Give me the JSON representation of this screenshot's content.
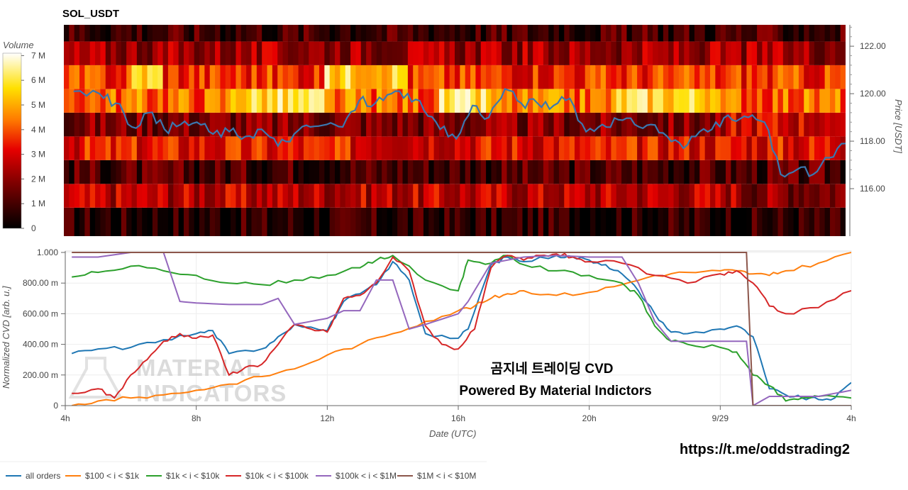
{
  "title": "SOL_USDT",
  "colorbar": {
    "label": "Volume",
    "ticks": [
      "0",
      "1 M",
      "2 M",
      "3 M",
      "4 M",
      "5 M",
      "6 M",
      "7 M"
    ],
    "range": [
      0,
      7000000
    ]
  },
  "heatmap": {
    "price_ticks": [
      "116.00",
      "118.00",
      "120.00",
      "122.00"
    ],
    "price_tick_values": [
      116,
      118,
      120,
      122
    ],
    "price_range": [
      114.0,
      122.9
    ],
    "price_axis_label": "Price [USDT]"
  },
  "cvd": {
    "y_axis_label": "Normalized CVD [arb. u.]",
    "y_ticks": [
      "0",
      "200.00 m",
      "400.00 m",
      "600.00 m",
      "800.00 m",
      "1.000"
    ],
    "y_tick_values": [
      0,
      0.2,
      0.4,
      0.6,
      0.8,
      1.0
    ],
    "x_ticks": [
      "4h",
      "8h",
      "12h",
      "16h",
      "20h",
      "9/29",
      "4h"
    ],
    "x_tick_values": [
      4,
      8,
      12,
      16,
      20,
      24,
      28
    ],
    "x_axis_label": "Date (UTC)"
  },
  "overlay_text": {
    "line1": "곰지네 트레이딩 CVD",
    "line2": "Powered By Material Indictors"
  },
  "watermark": {
    "line1": "MATERIAL",
    "line2": "INDICATORS"
  },
  "url": "https://t.me/oddstrading2",
  "legend": [
    {
      "label": "all orders",
      "color": "#1f77b4"
    },
    {
      "label": "$100 < i < $1k",
      "color": "#ff7f0e"
    },
    {
      "label": "$1k < i < $10k",
      "color": "#2ca02c"
    },
    {
      "label": "$10k < i < $100k",
      "color": "#d62728"
    },
    {
      "label": "$100k < i < $1M",
      "color": "#9467bd"
    },
    {
      "label": "$1M < i < $10M",
      "color": "#8c564b"
    }
  ],
  "chart_data": [
    {
      "type": "heatmap",
      "x_range_hours": [
        3.9,
        28.0
      ],
      "y_bands_price": [
        114.2,
        115.2,
        116.2,
        117.2,
        118.2,
        119.2,
        120.2,
        121.2,
        122.2
      ],
      "band_mean_volume_millions": [
        0.6,
        2.6,
        1.1,
        3.2,
        1.8,
        4.2,
        3.6,
        2.2,
        1.0
      ],
      "price_line": {
        "x": [
          4.2,
          5.0,
          5.5,
          6.0,
          6.5,
          7.0,
          7.5,
          8.0,
          8.5,
          9.0,
          9.5,
          10.0,
          10.5,
          11.0,
          11.5,
          12.0,
          12.5,
          13.0,
          13.5,
          14.0,
          14.5,
          15.0,
          15.5,
          16.0,
          16.5,
          17.0,
          17.5,
          18.0,
          18.5,
          19.0,
          19.5,
          20.0,
          20.5,
          21.0,
          21.5,
          22.0,
          22.5,
          23.0,
          23.5,
          24.0,
          24.5,
          25.0,
          25.5,
          26.0,
          26.5,
          27.0,
          27.5,
          28.0
        ],
        "y": [
          120.1,
          120.0,
          119.6,
          118.6,
          119.2,
          118.5,
          118.7,
          118.8,
          118.3,
          118.4,
          118.2,
          118.5,
          117.8,
          118.3,
          118.6,
          118.7,
          118.6,
          119.7,
          119.6,
          120.0,
          120.0,
          119.3,
          118.5,
          118.1,
          119.5,
          119.0,
          120.2,
          119.6,
          119.6,
          119.5,
          119.8,
          118.4,
          118.7,
          118.9,
          118.7,
          118.7,
          118.2,
          117.7,
          118.4,
          118.8,
          118.9,
          119.0,
          118.8,
          116.6,
          116.8,
          116.6,
          117.3,
          117.9
        ]
      }
    },
    {
      "type": "line",
      "x_range": [
        4,
        28
      ],
      "ylim": [
        0,
        1.0
      ],
      "series": [
        {
          "name": "all orders",
          "x": [
            4.2,
            5,
            6,
            7,
            8,
            8.5,
            9,
            10,
            10.5,
            11,
            12,
            12.5,
            13,
            13.5,
            14,
            14.5,
            15,
            16,
            16.3,
            17,
            17.5,
            18,
            19,
            19.5,
            20,
            20.5,
            21,
            21.5,
            22,
            22.5,
            23,
            24,
            24.5,
            25,
            25.5,
            26,
            26.5,
            27,
            27.5,
            28
          ],
          "y": [
            0.34,
            0.37,
            0.38,
            0.43,
            0.47,
            0.49,
            0.34,
            0.37,
            0.45,
            0.53,
            0.49,
            0.68,
            0.73,
            0.79,
            0.94,
            0.82,
            0.47,
            0.44,
            0.5,
            0.92,
            0.97,
            0.94,
            0.98,
            0.97,
            0.95,
            0.92,
            0.86,
            0.75,
            0.6,
            0.48,
            0.47,
            0.5,
            0.52,
            0.45,
            0.11,
            0.07,
            0.05,
            0.04,
            0.05,
            0.15
          ]
        },
        {
          "name": "$100 < i < $1k",
          "x": [
            4.2,
            5,
            6,
            7,
            8,
            9,
            10,
            11,
            12,
            13,
            14,
            15,
            16,
            16.5,
            17,
            17.5,
            18,
            19,
            20,
            21,
            22,
            23,
            24,
            24.5,
            25,
            25.5,
            26,
            27,
            28
          ],
          "y": [
            0.0,
            0.03,
            0.05,
            0.07,
            0.1,
            0.14,
            0.19,
            0.24,
            0.33,
            0.4,
            0.47,
            0.55,
            0.62,
            0.65,
            0.7,
            0.73,
            0.75,
            0.72,
            0.74,
            0.79,
            0.85,
            0.87,
            0.88,
            0.88,
            0.86,
            0.85,
            0.88,
            0.93,
            1.0
          ]
        },
        {
          "name": "$1k < i < $10k",
          "x": [
            4.2,
            5,
            6,
            7,
            8,
            9,
            10,
            11,
            12,
            13,
            13.5,
            14,
            15,
            16,
            16.3,
            17,
            17.5,
            18,
            19,
            20,
            21,
            21.5,
            22,
            22.5,
            23,
            24,
            24.5,
            25,
            25.5,
            26,
            26.5,
            27,
            28
          ],
          "y": [
            0.84,
            0.87,
            0.91,
            0.88,
            0.85,
            0.8,
            0.79,
            0.82,
            0.85,
            0.9,
            0.95,
            0.98,
            0.82,
            0.75,
            0.95,
            0.93,
            0.98,
            0.92,
            0.88,
            0.85,
            0.8,
            0.72,
            0.52,
            0.42,
            0.4,
            0.38,
            0.35,
            0.2,
            0.13,
            0.03,
            0.05,
            0.06,
            0.05
          ]
        },
        {
          "name": "$10k < i < $100k",
          "x": [
            4.2,
            5,
            5.5,
            6,
            6.5,
            7,
            7.5,
            8,
            8.5,
            9,
            9.5,
            10,
            10.5,
            11,
            11.5,
            12,
            12.5,
            13,
            13.5,
            14,
            14.5,
            15,
            15.5,
            16,
            16.5,
            17,
            17.5,
            18,
            18.5,
            19,
            19.5,
            20,
            21,
            22,
            23,
            24,
            24.5,
            25,
            25.5,
            26,
            27,
            28
          ],
          "y": [
            0.08,
            0.11,
            0.05,
            0.2,
            0.3,
            0.42,
            0.47,
            0.44,
            0.46,
            0.2,
            0.25,
            0.27,
            0.4,
            0.53,
            0.5,
            0.48,
            0.7,
            0.72,
            0.8,
            0.97,
            0.88,
            0.52,
            0.4,
            0.37,
            0.5,
            0.9,
            0.98,
            0.95,
            0.98,
            0.99,
            0.97,
            0.94,
            0.93,
            0.85,
            0.8,
            0.86,
            0.88,
            0.8,
            0.65,
            0.6,
            0.64,
            0.75
          ]
        },
        {
          "name": "$100k < i < $1M",
          "x": [
            4.2,
            5,
            6,
            7,
            7.5,
            8,
            9,
            10,
            10.5,
            11,
            11.5,
            12,
            12.5,
            13,
            13.5,
            14,
            14.5,
            15,
            16,
            16.3,
            17,
            18,
            19,
            20,
            21,
            21.5,
            22,
            22.5,
            23,
            24,
            24.5,
            24.8,
            25,
            25.5,
            26,
            27,
            28
          ],
          "y": [
            0.97,
            0.97,
            1.0,
            1.0,
            0.68,
            0.67,
            0.66,
            0.66,
            0.7,
            0.53,
            0.55,
            0.57,
            0.62,
            0.62,
            0.82,
            0.82,
            0.5,
            0.53,
            0.6,
            0.68,
            0.93,
            0.97,
            0.98,
            0.97,
            0.97,
            0.8,
            0.55,
            0.42,
            0.42,
            0.42,
            0.42,
            0.42,
            0.0,
            0.06,
            0.06,
            0.06,
            0.1
          ]
        },
        {
          "name": "$1M < i < $10M",
          "x": [
            4.2,
            24.8,
            25.0,
            28
          ],
          "y": [
            1.0,
            1.0,
            0.0,
            0.0
          ]
        }
      ]
    }
  ]
}
